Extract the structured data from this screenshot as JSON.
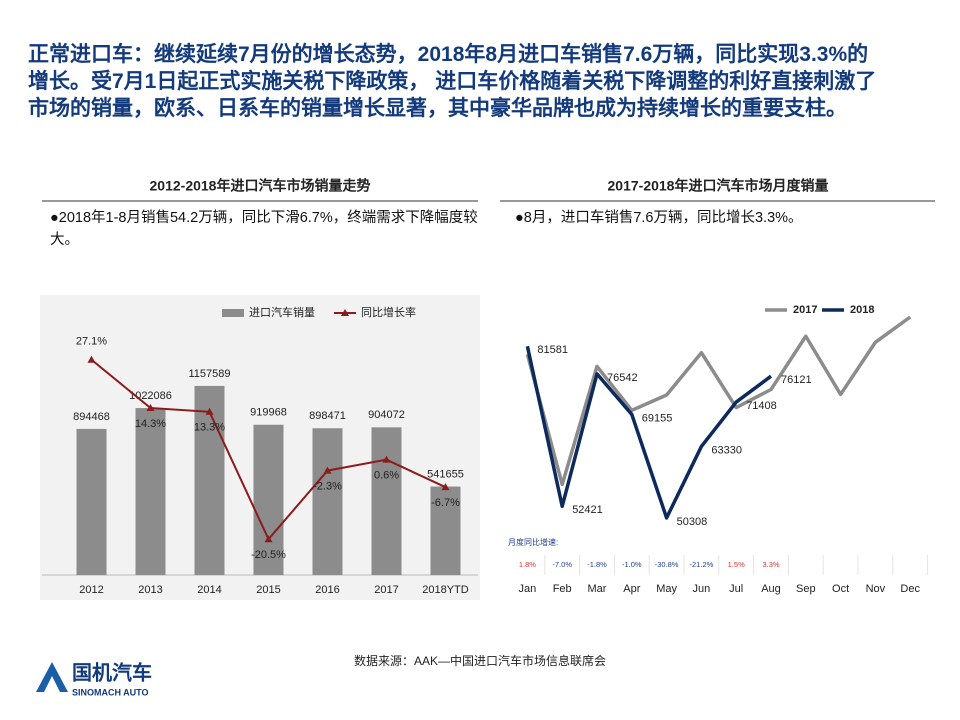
{
  "header": {
    "lines": [
      "正常进口车：继续延续7月份的增长态势，2018年8月进口车销售7.6万辆，同比实现3.3%的",
      "增长。受7月1日起正式实施关税下降政策， 进口车价格随着关税下降调整的利好直接刺激了",
      "市场的销量，欧系、日系车的销量增长显著，其中豪华品牌也成为持续增长的重要支柱。"
    ]
  },
  "chart_data": [
    {
      "type": "bar",
      "title": "2012-2018年进口汽车市场销量走势",
      "note": "●2018年1-8月销售54.2万辆，同比下滑6.7%，终端需求下降幅度较大。",
      "categories": [
        "2012",
        "2013",
        "2014",
        "2015",
        "2016",
        "2017",
        "2018YTD"
      ],
      "ylim": [
        0,
        1500000
      ],
      "y2lim": [
        -30,
        35
      ],
      "series": [
        {
          "name": "进口汽车销量",
          "type": "bar",
          "color": "#8c8c8c",
          "values": [
            894468,
            1022086,
            1157589,
            919968,
            898471,
            904072,
            541655
          ]
        },
        {
          "name": "同比增长率",
          "type": "line",
          "axis": "y2",
          "color": "#8b1c1c",
          "values": [
            27.1,
            14.3,
            13.3,
            -20.5,
            -2.3,
            0.6,
            -6.7
          ],
          "value_labels": [
            "27.1%",
            "14.3%",
            "13.3%",
            "-20.5%",
            "-2.3%",
            "0.6%",
            "-6.7%"
          ]
        }
      ]
    },
    {
      "type": "line",
      "title": "2017-2018年进口汽车市场月度销量",
      "note": "●8月，进口车销售7.6万辆，同比增长3.3%。",
      "categories": [
        "Jan",
        "Feb",
        "Mar",
        "Apr",
        "May",
        "Jun",
        "Jul",
        "Aug",
        "Sep",
        "Oct",
        "Nov",
        "Dec"
      ],
      "ylim": [
        39000,
        90000
      ],
      "series": [
        {
          "name": "2017",
          "color": "#8c8c8c",
          "values": [
            80100,
            56400,
            77900,
            69900,
            72700,
            80400,
            70400,
            73700,
            83400,
            72800,
            82300,
            86900
          ]
        },
        {
          "name": "2018",
          "color": "#0d2a5c",
          "values": [
            81581,
            52421,
            76542,
            69155,
            50308,
            63330,
            71408,
            76121,
            null,
            null,
            null,
            null
          ],
          "show_labels": true
        }
      ],
      "yoy": {
        "label": "月度同比增速:",
        "values": [
          1.8,
          -7.0,
          -1.8,
          -1.0,
          -30.8,
          -21.2,
          1.5,
          3.3
        ],
        "value_labels": [
          "1.8%",
          "-7.0%",
          "-1.8%",
          "-1.0%",
          "-30.8%",
          "-21.2%",
          "1.5%",
          "3.3%"
        ],
        "positive_color": "#e03030",
        "negative_color": "#1f3f8f"
      }
    }
  ],
  "source": "数据来源：AAK—中国进口汽车市场信息联席会",
  "logo": {
    "name": "国机汽车",
    "subtitle": "SINOMACH AUTO"
  }
}
